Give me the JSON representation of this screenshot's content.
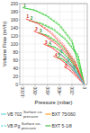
{
  "chart_data": {
    "type": "line",
    "xlabel": "Pressure (mbar)",
    "ylabel": "Volume Flow (m³/h)",
    "xlim": [
      -1050,
      50
    ],
    "ylim": [
      0,
      200
    ],
    "xticks": [
      -1000,
      -800,
      -600,
      -400,
      -200,
      0
    ],
    "yticks": [
      0,
      20,
      40,
      60,
      80,
      100,
      120,
      140,
      160,
      180,
      200
    ],
    "grid": true,
    "series": [
      {
        "x": [
          -1000,
          -800,
          -600,
          -400,
          -200,
          0
        ],
        "values": [
          190,
          183,
          168,
          145,
          105,
          0
        ],
        "color": "#33cc33",
        "line_style": "solid"
      },
      {
        "x": [
          -1000,
          -800,
          -600,
          -400,
          -200,
          0
        ],
        "values": [
          190,
          184,
          170,
          148,
          110,
          2
        ],
        "color": "#33cc33",
        "line_style": "dashed"
      },
      {
        "x": [
          -900,
          -700,
          -500,
          -300,
          -100,
          0
        ],
        "values": [
          158,
          150,
          135,
          110,
          70,
          0
        ],
        "color": "#33cc33",
        "line_style": "solid"
      },
      {
        "x": [
          -900,
          -700,
          -500,
          -300,
          -100,
          0
        ],
        "values": [
          158,
          152,
          138,
          113,
          74,
          2
        ],
        "color": "#33cc33",
        "line_style": "dashed"
      },
      {
        "x": [
          -750,
          -600,
          -450,
          -300,
          -150,
          0
        ],
        "values": [
          128,
          120,
          105,
          83,
          50,
          0
        ],
        "color": "#33cc33",
        "line_style": "solid"
      },
      {
        "x": [
          -750,
          -600,
          -450,
          -300,
          -150,
          0
        ],
        "values": [
          128,
          122,
          108,
          86,
          54,
          2
        ],
        "color": "#33cc33",
        "line_style": "dashed"
      },
      {
        "x": [
          -600,
          -480,
          -360,
          -240,
          -120,
          0
        ],
        "values": [
          98,
          92,
          79,
          61,
          36,
          0
        ],
        "color": "#33cc33",
        "line_style": "solid"
      },
      {
        "x": [
          -600,
          -480,
          -360,
          -240,
          -120,
          0
        ],
        "values": [
          98,
          93,
          81,
          63,
          38,
          2
        ],
        "color": "#33cc33",
        "line_style": "dashed"
      },
      {
        "x": [
          -450,
          -360,
          -270,
          -180,
          -90,
          0
        ],
        "values": [
          68,
          63,
          53,
          39,
          21,
          0
        ],
        "color": "#33cc33",
        "line_style": "solid"
      },
      {
        "x": [
          -450,
          -360,
          -270,
          -180,
          -90,
          0
        ],
        "values": [
          68,
          64,
          54,
          40,
          22,
          2
        ],
        "color": "#33cc33",
        "line_style": "dashed"
      },
      {
        "x": [
          -950,
          -750,
          -550,
          -350,
          -150,
          0
        ],
        "values": [
          162,
          150,
          128,
          97,
          55,
          0
        ],
        "color": "#ff3333",
        "line_style": "solid"
      },
      {
        "x": [
          -950,
          -750,
          -550,
          -350,
          -150,
          0
        ],
        "values": [
          162,
          152,
          132,
          102,
          60,
          2
        ],
        "color": "#ff6666",
        "line_style": "dashed"
      },
      {
        "x": [
          -820,
          -640,
          -460,
          -280,
          -120,
          0
        ],
        "values": [
          132,
          120,
          100,
          74,
          40,
          0
        ],
        "color": "#ff3333",
        "line_style": "solid"
      },
      {
        "x": [
          -820,
          -640,
          -460,
          -280,
          -120,
          0
        ],
        "values": [
          132,
          122,
          104,
          78,
          44,
          2
        ],
        "color": "#ff6666",
        "line_style": "dashed"
      },
      {
        "x": [
          -660,
          -520,
          -380,
          -240,
          -100,
          0
        ],
        "values": [
          100,
          90,
          73,
          52,
          25,
          0
        ],
        "color": "#ff3333",
        "line_style": "solid"
      },
      {
        "x": [
          -660,
          -520,
          -380,
          -240,
          -100,
          0
        ],
        "values": [
          100,
          92,
          76,
          55,
          28,
          2
        ],
        "color": "#ff6666",
        "line_style": "dashed"
      },
      {
        "x": [
          -500,
          -390,
          -280,
          -180,
          -80,
          0
        ],
        "values": [
          70,
          62,
          49,
          33,
          15,
          0
        ],
        "color": "#ff3333",
        "line_style": "solid"
      },
      {
        "x": [
          -500,
          -390,
          -280,
          -180,
          -80,
          0
        ],
        "values": [
          70,
          63,
          51,
          35,
          17,
          2
        ],
        "color": "#ff6666",
        "line_style": "dashed"
      },
      {
        "x": [
          -330,
          -260,
          -185,
          -115,
          -50,
          0
        ],
        "values": [
          44,
          38,
          28,
          17,
          7,
          0
        ],
        "color": "#ff3333",
        "line_style": "solid"
      },
      {
        "x": [
          -330,
          -260,
          -185,
          -115,
          -50,
          0
        ],
        "values": [
          44,
          39,
          30,
          19,
          8,
          2
        ],
        "color": "#ff6666",
        "line_style": "dashed"
      },
      {
        "x": [
          -420,
          -320,
          -220,
          -130,
          -50,
          0
        ],
        "values": [
          78,
          68,
          52,
          33,
          14,
          0
        ],
        "color": "#44ccdd",
        "line_style": "solid"
      },
      {
        "x": [
          -310,
          -230,
          -155,
          -90,
          -35,
          0
        ],
        "values": [
          56,
          48,
          36,
          22,
          8,
          0
        ],
        "color": "#44ccdd",
        "line_style": "solid"
      },
      {
        "x": [
          -210,
          -155,
          -105,
          -60,
          -22,
          0
        ],
        "values": [
          38,
          32,
          23,
          13,
          5,
          0
        ],
        "color": "#44ccdd",
        "line_style": "solid"
      }
    ],
    "annotations": [
      {
        "x": -970,
        "y": 195,
        "text": "1",
        "color": "#228822"
      },
      {
        "x": -860,
        "y": 163,
        "text": "2",
        "color": "#228822"
      },
      {
        "x": -710,
        "y": 133,
        "text": "3",
        "color": "#228822"
      },
      {
        "x": -560,
        "y": 102,
        "text": "4",
        "color": "#228822"
      },
      {
        "x": -410,
        "y": 72,
        "text": "5",
        "color": "#228822"
      },
      {
        "x": -920,
        "y": 167,
        "text": "1",
        "color": "#cc1111"
      },
      {
        "x": -780,
        "y": 136,
        "text": "2",
        "color": "#cc1111"
      },
      {
        "x": -620,
        "y": 104,
        "text": "3",
        "color": "#cc1111"
      },
      {
        "x": -460,
        "y": 73,
        "text": "4",
        "color": "#cc1111"
      },
      {
        "x": -295,
        "y": 46,
        "text": "5",
        "color": "#cc1111"
      },
      {
        "x": -370,
        "y": 82,
        "text": "1",
        "color": "#229999"
      },
      {
        "x": -260,
        "y": 59,
        "text": "2",
        "color": "#229999"
      },
      {
        "x": -170,
        "y": 41,
        "text": "3",
        "color": "#229999"
      }
    ],
    "legend_entries": [
      {
        "text": "VB 702",
        "color": "#44ccdd",
        "line_style": "solid",
        "description": "Surface co-\npressure"
      },
      {
        "text": "VB Pg",
        "color": "#44ccdd",
        "line_style": "dashed",
        "description": "Surface co-\npressure"
      },
      {
        "text": "BXT 75/060",
        "color": "#ff8800",
        "line_style": "solid"
      },
      {
        "text": "BXT 5-1/8",
        "color": "#22aa22",
        "line_style": "solid"
      }
    ]
  }
}
